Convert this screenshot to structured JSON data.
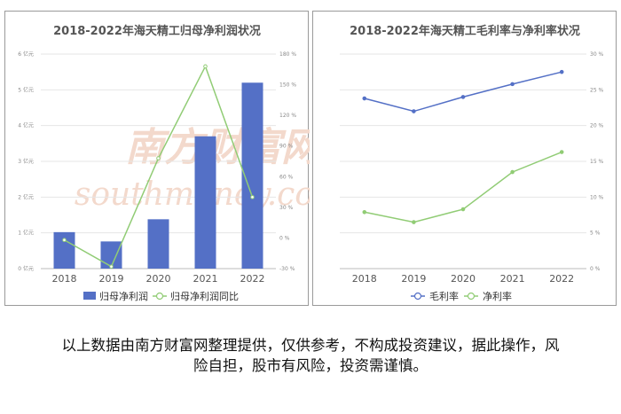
{
  "chart_data": [
    {
      "type": "bar+line",
      "title": "2018-2022年海天精工归母净利润状况",
      "categories": [
        "2018",
        "2019",
        "2020",
        "2021",
        "2022"
      ],
      "series": [
        {
          "name": "归母净利润",
          "type": "bar",
          "axis": "left",
          "values": [
            1.02,
            0.76,
            1.38,
            3.7,
            5.2
          ]
        },
        {
          "name": "归母净利润同比",
          "type": "line",
          "axis": "right",
          "values": [
            -2,
            -28,
            78,
            168,
            40
          ]
        }
      ],
      "y_left": {
        "min": 0,
        "max": 6,
        "ticks": [
          0,
          1,
          2,
          3,
          4,
          5,
          6
        ],
        "unit": "亿元"
      },
      "y_right": {
        "min": -30,
        "max": 180,
        "ticks": [
          -30,
          0,
          30,
          60,
          90,
          120,
          150,
          180
        ],
        "unit": "%"
      },
      "legend_position": "bottom",
      "colors": {
        "bar": "#5470c6",
        "line": "#91cc75"
      }
    },
    {
      "type": "line",
      "title": "2018-2022年海天精工毛利率与净利率状况",
      "categories": [
        "2018",
        "2019",
        "2020",
        "2021",
        "2022"
      ],
      "series": [
        {
          "name": "毛利率",
          "values": [
            23.8,
            22.0,
            24.0,
            25.8,
            27.5
          ]
        },
        {
          "name": "净利率",
          "values": [
            7.9,
            6.5,
            8.3,
            13.5,
            16.3
          ]
        }
      ],
      "y_right": {
        "min": 0,
        "max": 30,
        "ticks": [
          0,
          5,
          10,
          15,
          20,
          25,
          30
        ],
        "unit": "%"
      },
      "legend_position": "bottom",
      "colors": {
        "series0": "#5470c6",
        "series1": "#91cc75"
      }
    }
  ],
  "watermark": {
    "cn": "南方财富网",
    "en": "southmoney.com"
  },
  "disclaimer": {
    "line1": "以上数据由南方财富网整理提供，仅供参考，不构成投资建议，据此操作，风",
    "line2": "险自担，股市有风险，投资需谨慎。"
  }
}
